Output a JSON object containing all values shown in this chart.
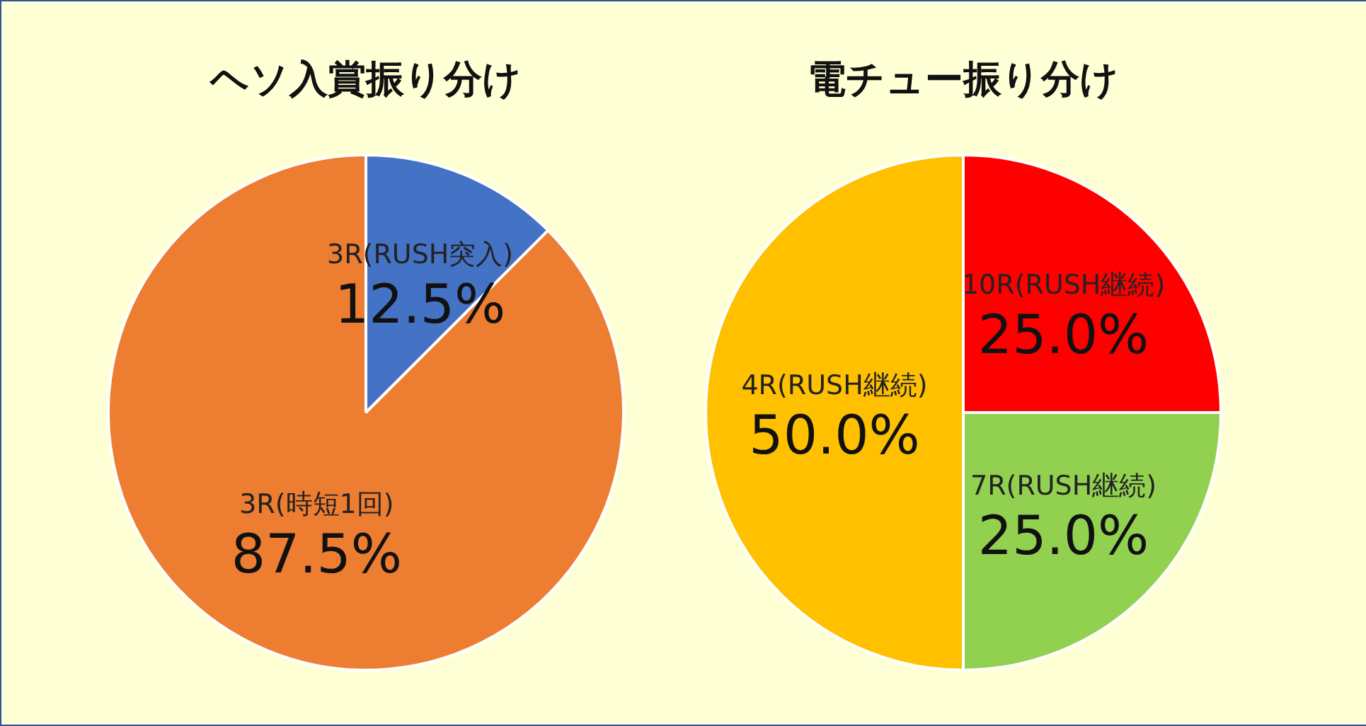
{
  "chart_data": [
    {
      "type": "pie",
      "title": "ヘソ入賞振り分け",
      "categories": [
        "3R(RUSH突入)",
        "3R(時短1回)"
      ],
      "values": [
        12.5,
        87.5
      ],
      "colors": [
        "#4472c4",
        "#ed7d31"
      ],
      "value_labels": [
        "12.5%",
        "87.5%"
      ]
    },
    {
      "type": "pie",
      "title": "電チュー振り分け",
      "categories": [
        "10R(RUSH継続)",
        "7R(RUSH継続)",
        "4R(RUSH継続)"
      ],
      "values": [
        25.0,
        25.0,
        50.0
      ],
      "colors": [
        "#ff0000",
        "#92d050",
        "#ffc000"
      ],
      "value_labels": [
        "25.0%",
        "25.0%",
        "50.0%"
      ]
    }
  ]
}
